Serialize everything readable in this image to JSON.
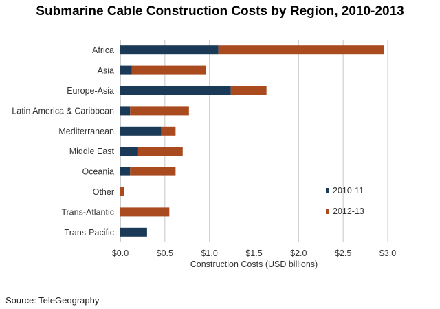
{
  "title": "Submarine Cable Construction Costs by Region, 2010-2013",
  "source": "Source:  TeleGeography",
  "colors": {
    "series_2010": "#1b3a57",
    "series_2012": "#a94a1f",
    "grid": "#c8c8c8",
    "text": "#333333"
  },
  "chart_data": {
    "type": "bar",
    "orientation": "horizontal",
    "stacked": true,
    "categories": [
      "Africa",
      "Asia",
      "Europe-Asia",
      "Latin America & Caribbean",
      "Mediterranean",
      "Middle East",
      "Oceania",
      "Other",
      "Trans-Atlantic",
      "Trans-Pacific"
    ],
    "series": [
      {
        "name": "2010-11",
        "color": "#1b3a57",
        "values": [
          1.1,
          0.13,
          1.24,
          0.11,
          0.46,
          0.2,
          0.11,
          0.0,
          0.0,
          0.3
        ]
      },
      {
        "name": "2012-13",
        "color": "#a94a1f",
        "values": [
          1.86,
          0.83,
          0.4,
          0.66,
          0.16,
          0.5,
          0.51,
          0.04,
          0.55,
          0.0
        ]
      }
    ],
    "xlabel": "Construction Costs (USD billions)",
    "ylabel": "",
    "xlim": [
      0,
      3.0
    ],
    "xticks": [
      0,
      0.5,
      1.0,
      1.5,
      2.0,
      2.5,
      3.0
    ],
    "xtick_labels": [
      "$0.0",
      "$0.5",
      "$1.0",
      "$1.5",
      "$2.0",
      "$2.5",
      "$3.0"
    ],
    "grid": "vertical",
    "legend": "right"
  }
}
